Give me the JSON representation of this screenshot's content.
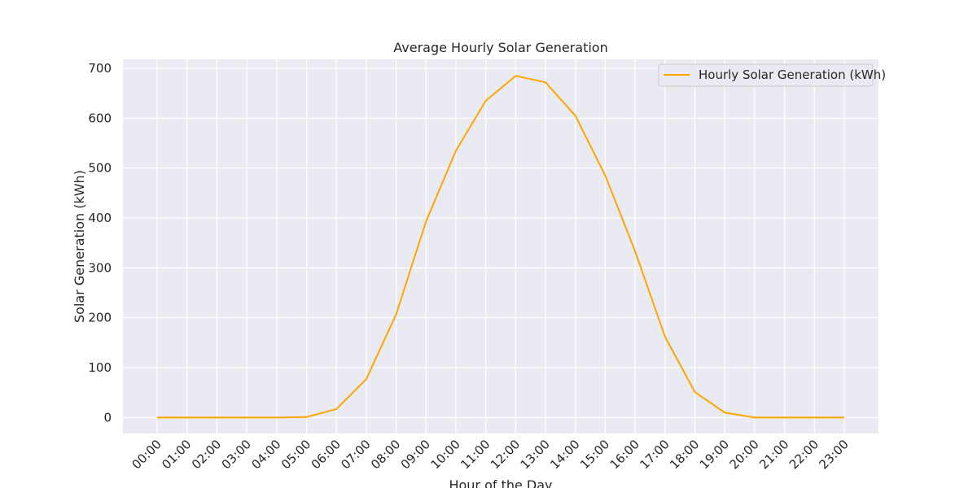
{
  "chart_data": {
    "type": "line",
    "title": "Average Hourly Solar Generation",
    "xlabel": "Hour of the Day",
    "ylabel": "Solar Generation (kWh)",
    "categories": [
      "00:00",
      "01:00",
      "02:00",
      "03:00",
      "04:00",
      "05:00",
      "06:00",
      "07:00",
      "08:00",
      "09:00",
      "10:00",
      "11:00",
      "12:00",
      "13:00",
      "14:00",
      "15:00",
      "16:00",
      "17:00",
      "18:00",
      "19:00",
      "20:00",
      "21:00",
      "22:00",
      "23:00"
    ],
    "series": [
      {
        "name": "Hourly Solar Generation (kWh)",
        "color": "#ffa500",
        "values": [
          0,
          0,
          0,
          0,
          0,
          1,
          17,
          77,
          207,
          393,
          535,
          635,
          685,
          672,
          605,
          485,
          333,
          162,
          51,
          10,
          0,
          0,
          0,
          0
        ]
      }
    ],
    "ylim": [
      -32,
      718
    ],
    "yticks": [
      0,
      100,
      200,
      300,
      400,
      500,
      600,
      700
    ],
    "grid": true,
    "legend_position": "top-right",
    "background_color": "#eaeaf2",
    "grid_color": "#ffffff"
  }
}
